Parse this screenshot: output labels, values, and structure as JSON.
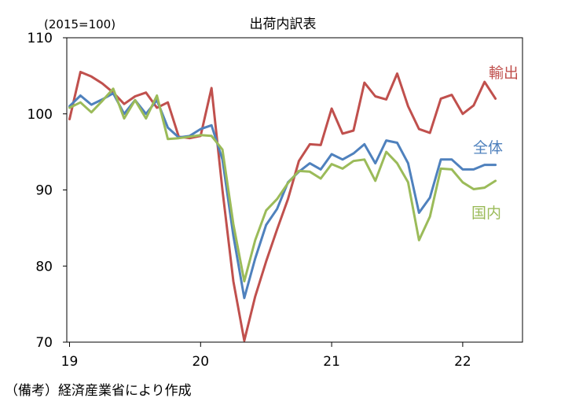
{
  "chart_data": {
    "type": "line",
    "title": "出荷内訳表",
    "base_note": "(2015=100)",
    "ylim": [
      70,
      110
    ],
    "yticks": [
      70,
      80,
      90,
      100,
      110
    ],
    "x_start": "2019-01",
    "xtick_labels": [
      "19",
      "20",
      "21",
      "22"
    ],
    "grid": false,
    "series": [
      {
        "name": "輸出",
        "color": "#c0504d",
        "values": [
          99.3,
          105.5,
          104.9,
          104.0,
          102.8,
          101.3,
          102.3,
          102.8,
          100.8,
          101.5,
          97.0,
          96.8,
          97.1,
          103.4,
          90.0,
          78.0,
          70.2,
          76.0,
          80.6,
          84.8,
          88.8,
          93.8,
          96.0,
          95.9,
          100.7,
          97.4,
          97.8,
          104.1,
          102.3,
          101.9,
          105.3,
          101.0,
          98.0,
          97.5,
          102.0,
          102.5,
          100.0,
          101.1,
          104.2,
          102.0
        ]
      },
      {
        "name": "全体",
        "color": "#4f81bd",
        "values": [
          101.0,
          102.4,
          101.2,
          101.9,
          102.7,
          100.0,
          101.8,
          100.0,
          101.8,
          98.2,
          96.9,
          97.1,
          98.0,
          98.5,
          94.0,
          84.0,
          75.8,
          81.0,
          85.4,
          87.5,
          91.0,
          92.4,
          93.5,
          92.7,
          94.7,
          94.0,
          94.8,
          96.0,
          93.5,
          96.5,
          96.2,
          93.5,
          87.0,
          89.0,
          94.0,
          94.0,
          92.7,
          92.7,
          93.3,
          93.3
        ]
      },
      {
        "name": "国内",
        "color": "#9bbb59",
        "values": [
          100.8,
          101.5,
          100.2,
          101.7,
          103.3,
          99.4,
          101.8,
          99.4,
          102.4,
          96.7,
          96.8,
          97.0,
          97.2,
          97.1,
          95.3,
          85.5,
          78.0,
          83.4,
          87.3,
          88.8,
          90.9,
          92.5,
          92.4,
          91.5,
          93.4,
          92.8,
          93.8,
          94.0,
          91.2,
          95.0,
          93.5,
          91.0,
          83.4,
          86.5,
          92.8,
          92.7,
          91.0,
          90.1,
          90.3,
          91.2
        ]
      }
    ]
  },
  "footnote": "（備考）経済産業省により作成"
}
